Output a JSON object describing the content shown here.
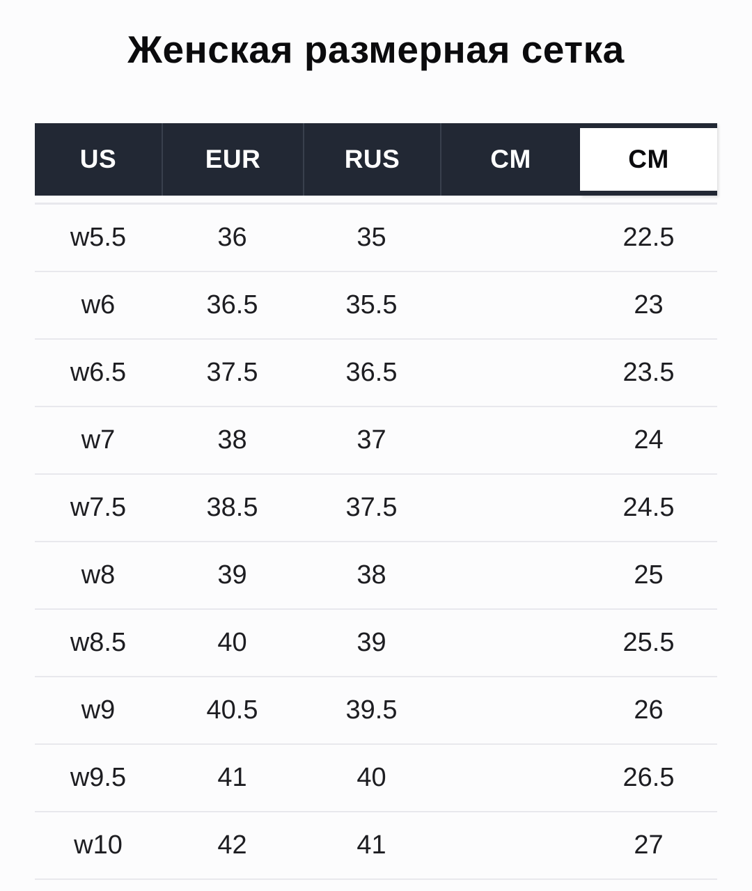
{
  "page": {
    "title": "Женская размерная сетка"
  },
  "table": {
    "columns": [
      {
        "key": "us",
        "label": "US",
        "selected": false
      },
      {
        "key": "eur",
        "label": "EUR",
        "selected": false
      },
      {
        "key": "rus",
        "label": "RUS",
        "selected": false
      },
      {
        "key": "cm_dark",
        "label": "CM",
        "selected": false
      },
      {
        "key": "cm",
        "label": "CM",
        "selected": true
      }
    ],
    "rows": [
      [
        "w5.5",
        "36",
        "35",
        "",
        "22.5"
      ],
      [
        "w6",
        "36.5",
        "35.5",
        "",
        "23"
      ],
      [
        "w6.5",
        "37.5",
        "36.5",
        "",
        "23.5"
      ],
      [
        "w7",
        "38",
        "37",
        "",
        "24"
      ],
      [
        "w7.5",
        "38.5",
        "37.5",
        "",
        "24.5"
      ],
      [
        "w8",
        "39",
        "38",
        "",
        "25"
      ],
      [
        "w8.5",
        "40",
        "39",
        "",
        "25.5"
      ],
      [
        "w9",
        "40.5",
        "39.5",
        "",
        "26"
      ],
      [
        "w9.5",
        "41",
        "40",
        "",
        "26.5"
      ],
      [
        "w10",
        "42",
        "41",
        "",
        "27"
      ]
    ]
  },
  "colors": {
    "header_background": "#222834",
    "header_divider": "#39404d",
    "header_text": "#ffffff",
    "selected_column_background": "#ffffff",
    "body_text": "#1d1d21",
    "row_separator": "#e8e8ed",
    "page_background": "#fcfcfd"
  }
}
